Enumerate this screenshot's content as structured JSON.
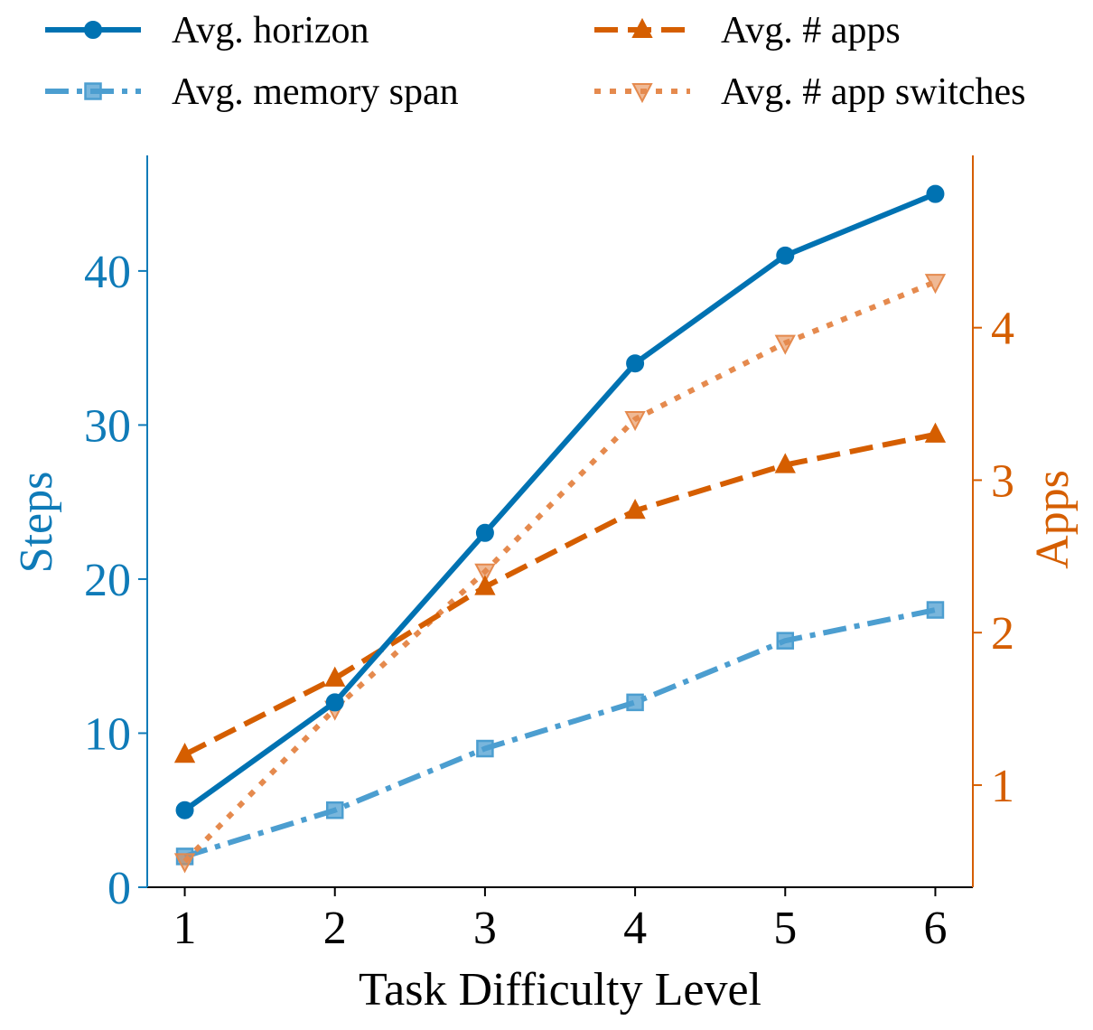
{
  "chart_data": {
    "type": "line",
    "title": "",
    "xlabel": "Task Difficulty Level",
    "ylabel": "Steps",
    "y2label": "Apps",
    "x": [
      1,
      2,
      3,
      4,
      5,
      6
    ],
    "xlim": [
      0.75,
      6.25
    ],
    "ylim": [
      0,
      47.5
    ],
    "y2lim": [
      0.33,
      5.13
    ],
    "yticks": [
      0,
      10,
      20,
      30,
      40
    ],
    "y2ticks": [
      1,
      2,
      3,
      4
    ],
    "grid": false,
    "legend_position": "top",
    "colors": {
      "steps_axis": "#0f7bb8",
      "apps_axis": "#d55e00",
      "horizon": "#0072b2",
      "memory_span": "#4c9ed0",
      "apps": "#d55e00",
      "app_switches": "#e58a4e"
    },
    "series": [
      {
        "name": "Avg. horizon",
        "axis": "left",
        "marker": "circle",
        "linestyle": "solid",
        "color_key": "horizon",
        "values": [
          5,
          12,
          23,
          34,
          41,
          45
        ]
      },
      {
        "name": "Avg. memory span",
        "axis": "left",
        "marker": "square",
        "linestyle": "dashdot",
        "color_key": "memory_span",
        "values": [
          2,
          5,
          9,
          12,
          16,
          18
        ]
      },
      {
        "name": "Avg. # apps",
        "axis": "right",
        "marker": "triangle-up",
        "linestyle": "dashed",
        "color_key": "apps",
        "values": [
          1.2,
          1.7,
          2.3,
          2.8,
          3.1,
          3.3
        ]
      },
      {
        "name": "Avg. # app switches",
        "axis": "right",
        "marker": "triangle-down",
        "linestyle": "dotted",
        "color_key": "app_switches",
        "values": [
          0.5,
          1.5,
          2.4,
          3.4,
          3.9,
          4.3
        ]
      }
    ]
  }
}
